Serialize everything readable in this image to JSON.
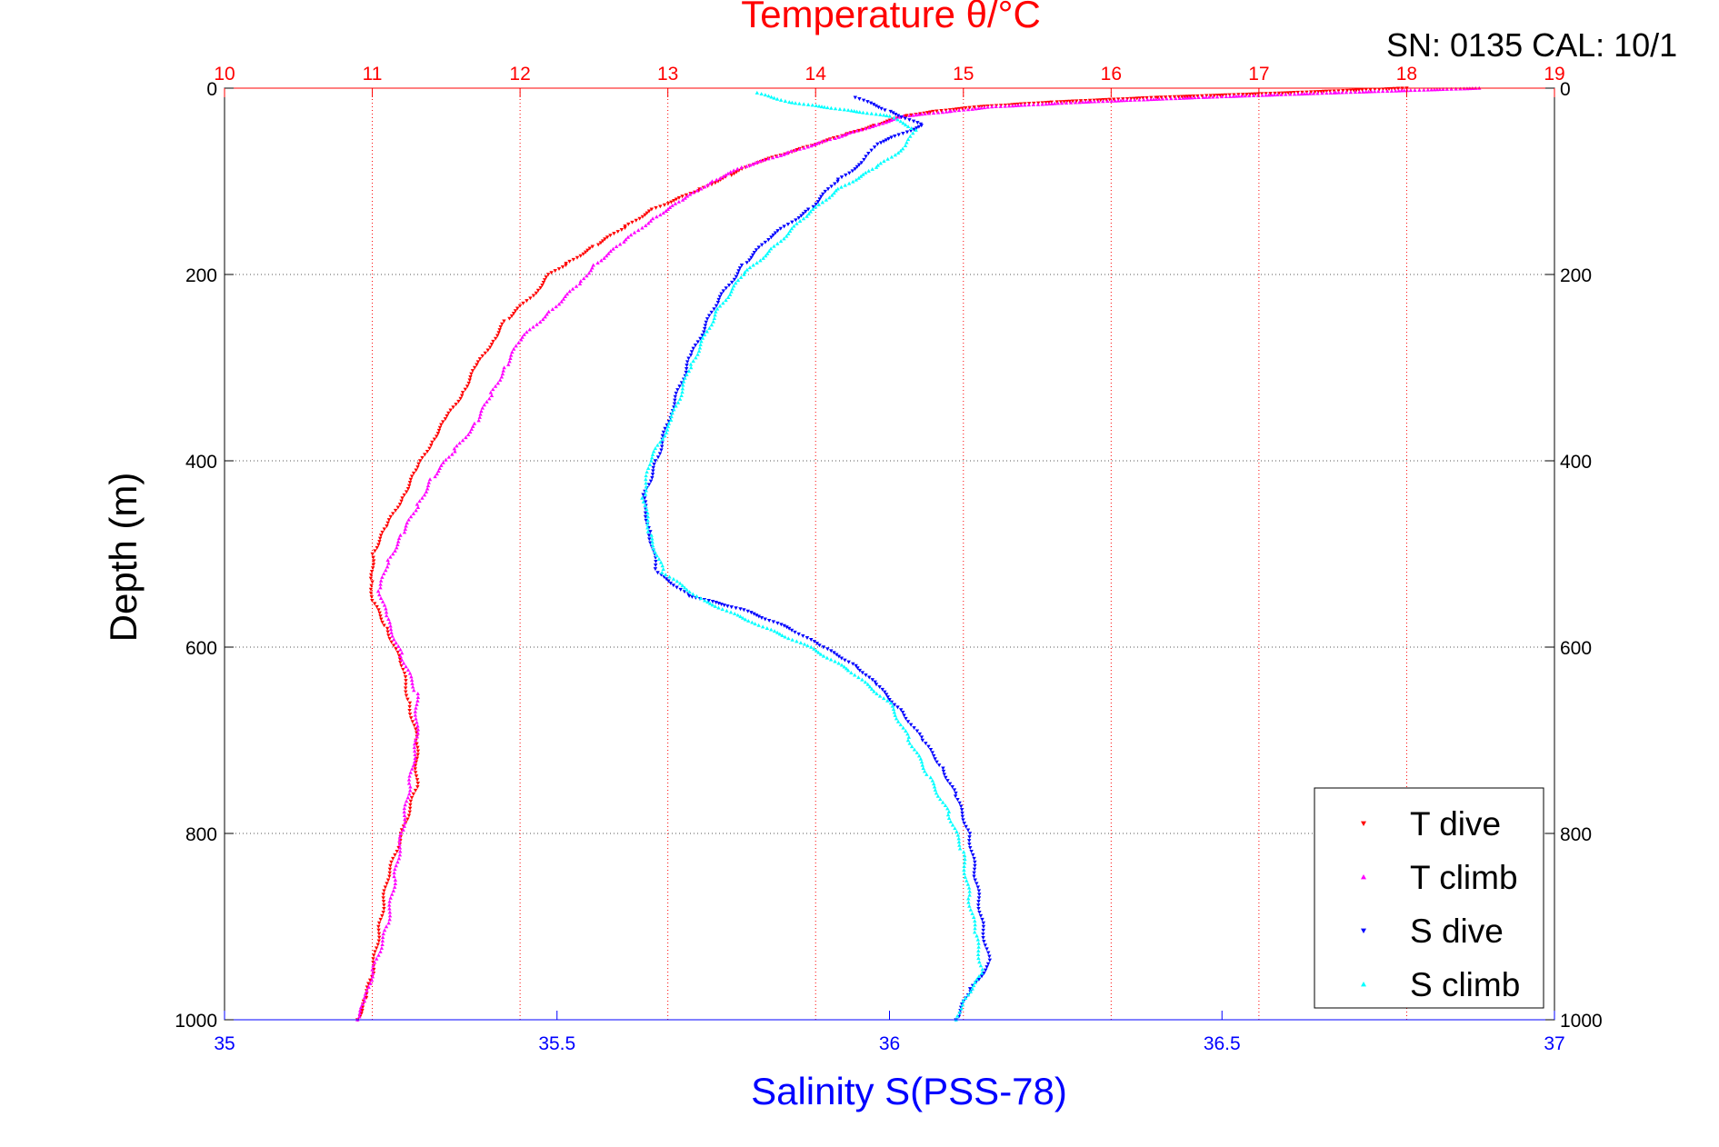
{
  "chart_data": {
    "type": "scatter",
    "title": "Temperature θ/°C",
    "annotation": "SN: 0135  CAL: 10/1",
    "ylabel": "Depth (m)",
    "xlabel_bottom": "Salinity S(PSS-78)",
    "xlabel_top": "Temperature θ/°C",
    "axes": {
      "depth": {
        "range": [
          0,
          1000
        ],
        "reversed": true,
        "ticks": [
          "0",
          "200",
          "400",
          "600",
          "800",
          "1000"
        ],
        "grid": true,
        "grid_style": "dotted"
      },
      "temperature": {
        "range": [
          10,
          19
        ],
        "position": "top",
        "ticks": [
          "10",
          "11",
          "12",
          "13",
          "14",
          "15",
          "16",
          "17",
          "18",
          "19"
        ],
        "grid": true,
        "grid_color": "#ff0000"
      },
      "salinity": {
        "range": [
          35,
          37
        ],
        "position": "bottom",
        "ticks": [
          "35",
          "35.5",
          "36",
          "36.5",
          "37"
        ],
        "grid": false
      }
    },
    "legend": {
      "placement": "bottom-right"
    },
    "series": [
      {
        "name": "T dive",
        "axis": "temperature",
        "color": "#ff0000",
        "marker": "triangle-down",
        "points": [
          [
            18.0,
            0
          ],
          [
            17.2,
            5
          ],
          [
            16.3,
            10
          ],
          [
            15.6,
            15
          ],
          [
            15.1,
            20
          ],
          [
            14.8,
            25
          ],
          [
            14.6,
            30
          ],
          [
            14.4,
            40
          ],
          [
            14.2,
            50
          ],
          [
            13.9,
            65
          ],
          [
            13.6,
            80
          ],
          [
            13.4,
            95
          ],
          [
            13.2,
            110
          ],
          [
            12.9,
            130
          ],
          [
            12.7,
            150
          ],
          [
            12.5,
            170
          ],
          [
            12.3,
            190
          ],
          [
            12.2,
            200
          ],
          [
            12.1,
            220
          ],
          [
            11.9,
            250
          ],
          [
            11.8,
            275
          ],
          [
            11.7,
            300
          ],
          [
            11.6,
            330
          ],
          [
            11.5,
            355
          ],
          [
            11.4,
            380
          ],
          [
            11.3,
            410
          ],
          [
            11.2,
            440
          ],
          [
            11.1,
            470
          ],
          [
            11.0,
            500
          ],
          [
            11.0,
            530
          ],
          [
            11.0,
            550
          ],
          [
            11.1,
            580
          ],
          [
            11.2,
            620
          ],
          [
            11.25,
            660
          ],
          [
            11.3,
            700
          ],
          [
            11.3,
            750
          ],
          [
            11.2,
            800
          ],
          [
            11.1,
            850
          ],
          [
            11.05,
            900
          ],
          [
            11.0,
            950
          ],
          [
            10.95,
            980
          ],
          [
            10.9,
            1000
          ]
        ]
      },
      {
        "name": "T climb",
        "axis": "temperature",
        "color": "#ff00ff",
        "marker": "triangle-up",
        "points": [
          [
            18.5,
            0
          ],
          [
            17.5,
            5
          ],
          [
            16.6,
            10
          ],
          [
            15.8,
            15
          ],
          [
            15.2,
            20
          ],
          [
            14.9,
            25
          ],
          [
            14.6,
            30
          ],
          [
            14.4,
            40
          ],
          [
            14.1,
            55
          ],
          [
            13.8,
            70
          ],
          [
            13.5,
            85
          ],
          [
            13.3,
            100
          ],
          [
            13.1,
            120
          ],
          [
            12.9,
            140
          ],
          [
            12.7,
            165
          ],
          [
            12.5,
            190
          ],
          [
            12.4,
            210
          ],
          [
            12.2,
            240
          ],
          [
            12.0,
            270
          ],
          [
            11.9,
            300
          ],
          [
            11.8,
            330
          ],
          [
            11.7,
            360
          ],
          [
            11.55,
            390
          ],
          [
            11.4,
            420
          ],
          [
            11.3,
            450
          ],
          [
            11.2,
            480
          ],
          [
            11.1,
            510
          ],
          [
            11.05,
            540
          ],
          [
            11.1,
            570
          ],
          [
            11.2,
            610
          ],
          [
            11.3,
            650
          ],
          [
            11.3,
            700
          ],
          [
            11.25,
            750
          ],
          [
            11.2,
            800
          ],
          [
            11.15,
            850
          ],
          [
            11.1,
            900
          ],
          [
            11.0,
            950
          ],
          [
            10.95,
            980
          ],
          [
            10.9,
            1000
          ]
        ]
      },
      {
        "name": "S dive",
        "axis": "salinity",
        "color": "#0000ff",
        "marker": "triangle-down",
        "points": [
          [
            35.95,
            10
          ],
          [
            36.0,
            25
          ],
          [
            36.05,
            40
          ],
          [
            35.98,
            60
          ],
          [
            35.96,
            80
          ],
          [
            35.92,
            100
          ],
          [
            35.88,
            130
          ],
          [
            35.82,
            160
          ],
          [
            35.78,
            190
          ],
          [
            35.74,
            230
          ],
          [
            35.7,
            290
          ],
          [
            35.67,
            350
          ],
          [
            35.65,
            400
          ],
          [
            35.63,
            440
          ],
          [
            35.64,
            480
          ],
          [
            35.65,
            520
          ],
          [
            35.7,
            545
          ],
          [
            35.78,
            560
          ],
          [
            35.85,
            580
          ],
          [
            35.9,
            600
          ],
          [
            35.95,
            620
          ],
          [
            35.98,
            640
          ],
          [
            36.02,
            670
          ],
          [
            36.05,
            700
          ],
          [
            36.08,
            730
          ],
          [
            36.1,
            760
          ],
          [
            36.12,
            800
          ],
          [
            36.13,
            850
          ],
          [
            36.14,
            900
          ],
          [
            36.15,
            940
          ],
          [
            36.12,
            970
          ],
          [
            36.1,
            1000
          ]
        ]
      },
      {
        "name": "S climb",
        "axis": "salinity",
        "color": "#00ffff",
        "marker": "triangle-up",
        "points": [
          [
            35.8,
            5
          ],
          [
            35.85,
            15
          ],
          [
            36.0,
            30
          ],
          [
            36.04,
            45
          ],
          [
            36.02,
            65
          ],
          [
            35.98,
            85
          ],
          [
            35.92,
            110
          ],
          [
            35.87,
            140
          ],
          [
            35.82,
            175
          ],
          [
            35.78,
            200
          ],
          [
            35.74,
            240
          ],
          [
            35.7,
            300
          ],
          [
            35.67,
            360
          ],
          [
            35.64,
            400
          ],
          [
            35.63,
            440
          ],
          [
            35.64,
            480
          ],
          [
            35.66,
            520
          ],
          [
            35.72,
            550
          ],
          [
            35.8,
            575
          ],
          [
            35.88,
            600
          ],
          [
            35.94,
            625
          ],
          [
            36.0,
            660
          ],
          [
            36.03,
            700
          ],
          [
            36.06,
            740
          ],
          [
            36.09,
            780
          ],
          [
            36.11,
            820
          ],
          [
            36.12,
            870
          ],
          [
            36.13,
            910
          ],
          [
            36.14,
            950
          ],
          [
            36.11,
            980
          ],
          [
            36.1,
            1000
          ]
        ]
      }
    ]
  }
}
